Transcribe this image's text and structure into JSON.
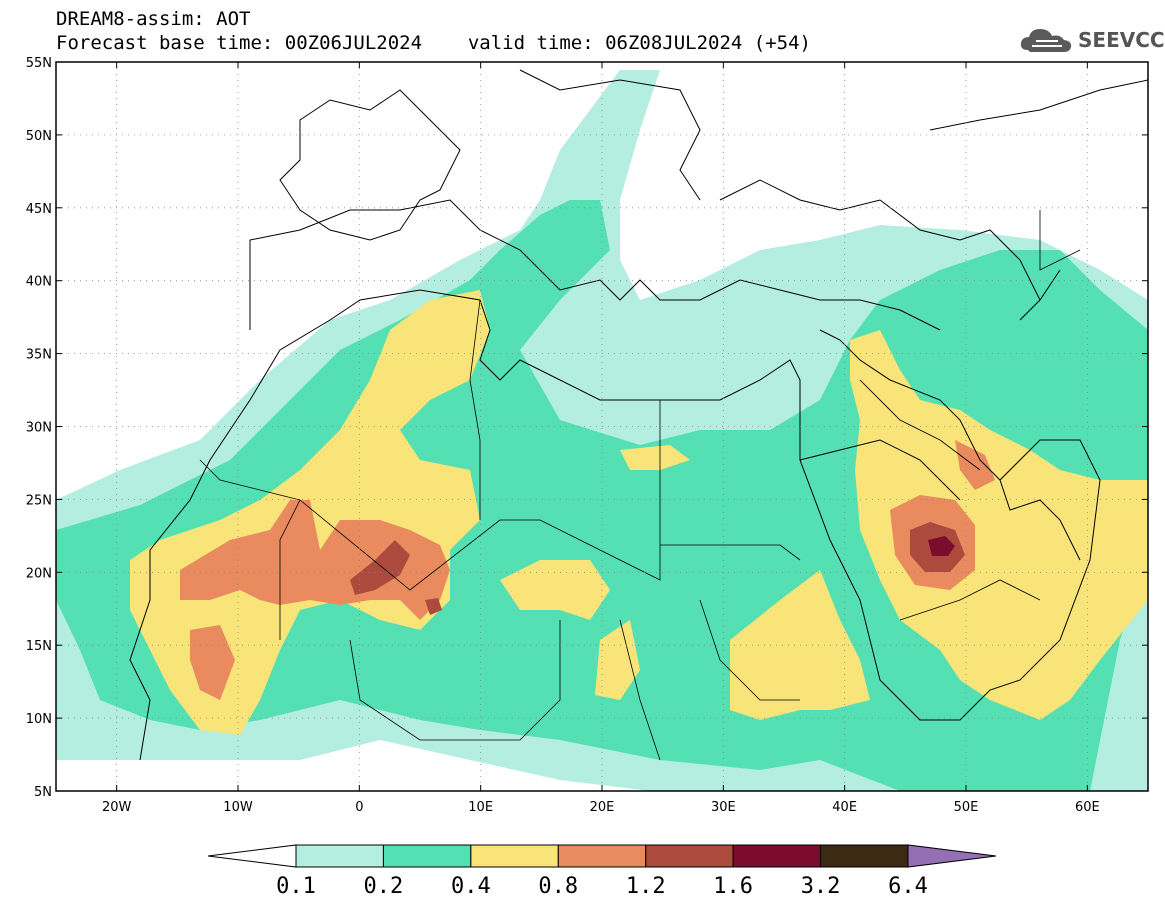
{
  "header": {
    "title": "DREAM8-assim: AOT",
    "forecast_base": "Forecast base time: 00Z06JUL2024",
    "valid_time": "valid time: 06Z08JUL2024 (+54)"
  },
  "logo": {
    "text": "SEEVCCC",
    "icon": "cloud-icon"
  },
  "map": {
    "lon_range": [
      -25,
      65
    ],
    "lat_range": [
      5,
      55
    ],
    "lat_ticks": [
      {
        "value": 55,
        "label": "55N"
      },
      {
        "value": 50,
        "label": "50N"
      },
      {
        "value": 45,
        "label": "45N"
      },
      {
        "value": 40,
        "label": "40N"
      },
      {
        "value": 35,
        "label": "35N"
      },
      {
        "value": 30,
        "label": "30N"
      },
      {
        "value": 25,
        "label": "25N"
      },
      {
        "value": 20,
        "label": "20N"
      },
      {
        "value": 15,
        "label": "15N"
      },
      {
        "value": 10,
        "label": "10N"
      },
      {
        "value": 5,
        "label": "5N"
      }
    ],
    "lon_ticks": [
      {
        "value": -20,
        "label": "20W"
      },
      {
        "value": -10,
        "label": "10W"
      },
      {
        "value": 0,
        "label": "0"
      },
      {
        "value": 10,
        "label": "10E"
      },
      {
        "value": 20,
        "label": "20E"
      },
      {
        "value": 30,
        "label": "30E"
      },
      {
        "value": 40,
        "label": "40E"
      },
      {
        "value": 50,
        "label": "50E"
      },
      {
        "value": 60,
        "label": "60E"
      }
    ],
    "grid": "dotted"
  },
  "colorbar": {
    "levels": [
      "0.1",
      "0.2",
      "0.4",
      "0.8",
      "1.2",
      "1.6",
      "3.2",
      "6.4"
    ],
    "colors": [
      "#ffffff",
      "#b4eee0",
      "#55e0b4",
      "#f8e479",
      "#e98b5f",
      "#ad4a3e",
      "#7c0c2d",
      "#3d2a14",
      "#946fb3"
    ]
  }
}
